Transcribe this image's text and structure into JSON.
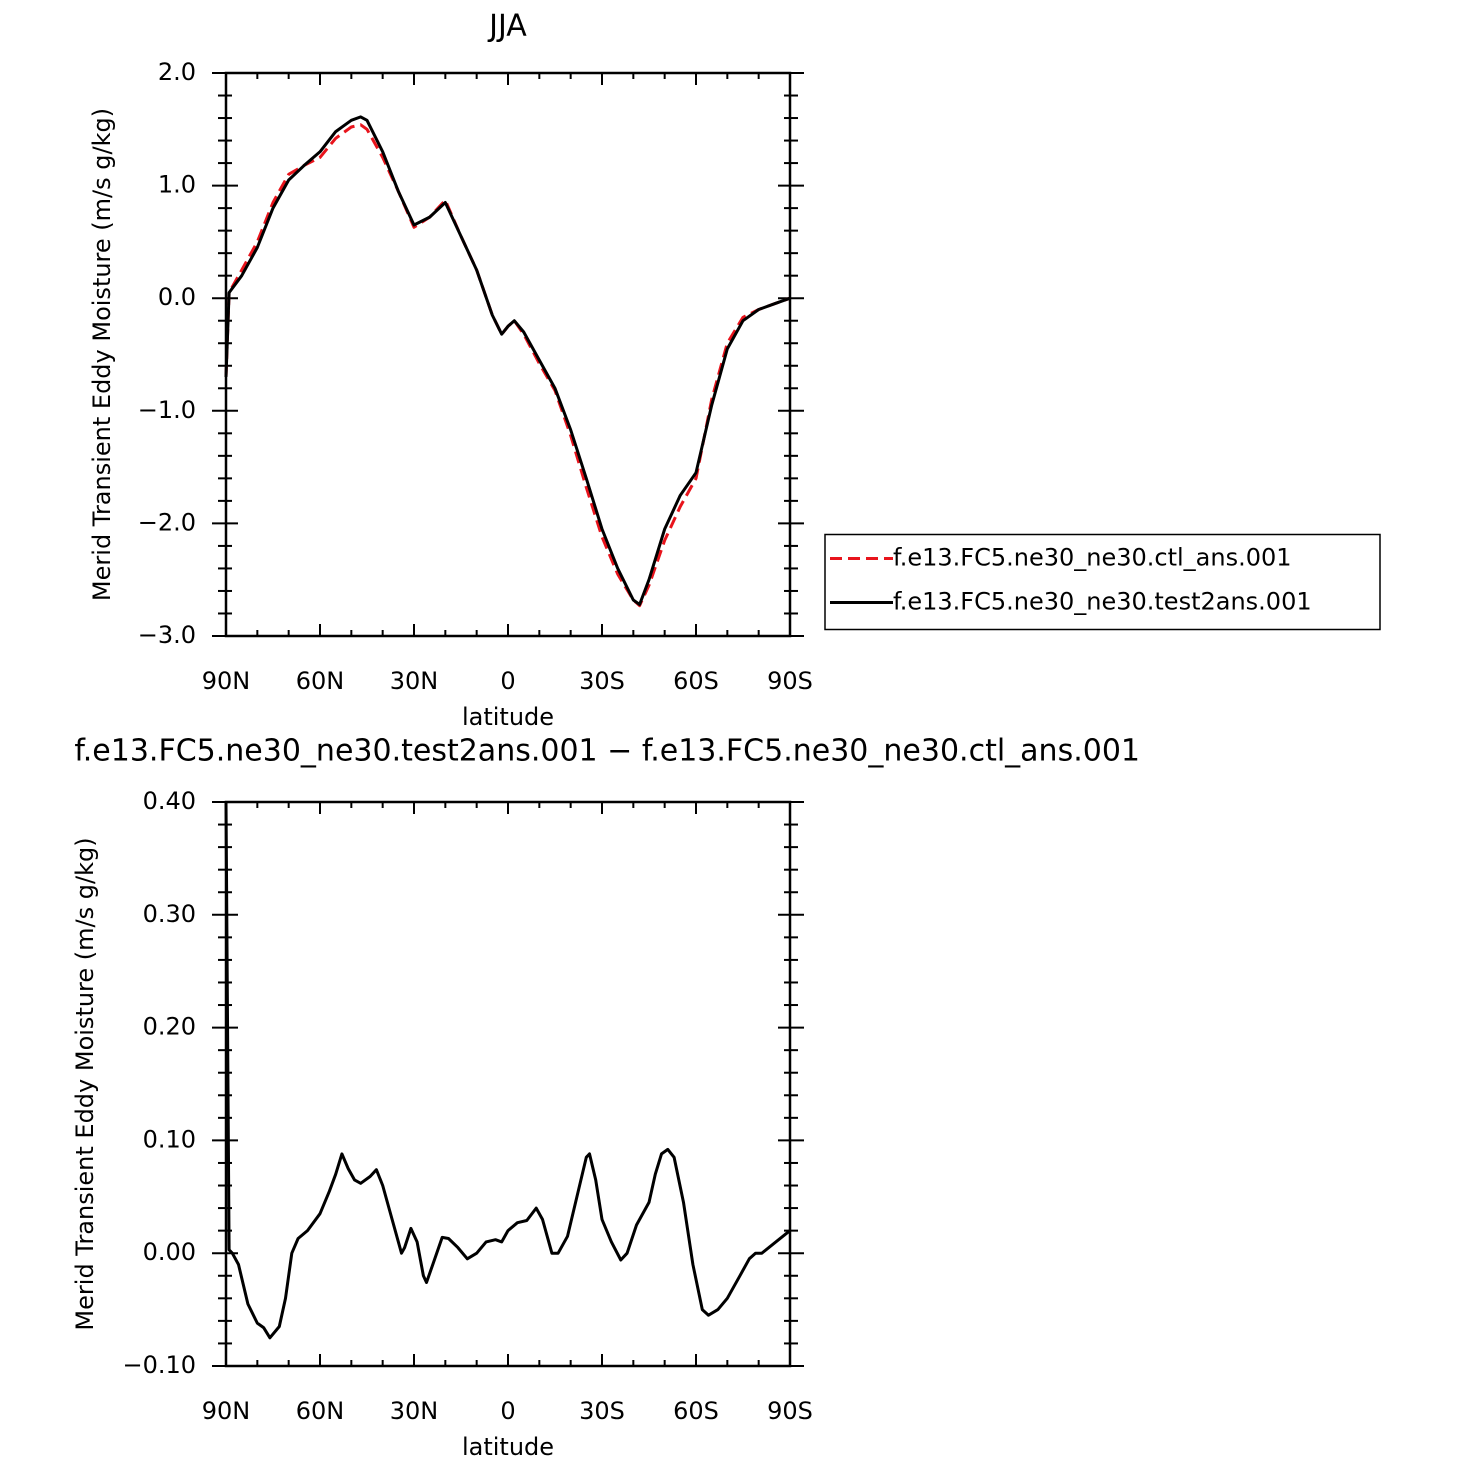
{
  "chart_data": [
    {
      "type": "line",
      "title": "JJA",
      "xlabel": "latitude",
      "ylabel": "Merid Transient Eddy Moisture (m/s g/kg)",
      "x": [
        90,
        89,
        85,
        80,
        75,
        70,
        65,
        60,
        55,
        50,
        47,
        45,
        40,
        35,
        30,
        25,
        20,
        15,
        10,
        5,
        2,
        0,
        -2,
        -5,
        -10,
        -15,
        -20,
        -25,
        -30,
        -35,
        -40,
        -42,
        -45,
        -50,
        -55,
        -60,
        -65,
        -70,
        -75,
        -80,
        -85,
        -90
      ],
      "series": [
        {
          "name": "f.e13.FC5.ne30_ne30.ctl_ans.001",
          "color": "#e8141c",
          "dash": true,
          "values": [
            -0.7,
            0.05,
            0.25,
            0.5,
            0.85,
            1.1,
            1.18,
            1.25,
            1.42,
            1.52,
            1.54,
            1.5,
            1.25,
            0.95,
            0.63,
            0.72,
            0.87,
            0.55,
            0.25,
            -0.15,
            -0.32,
            -0.25,
            -0.2,
            -0.32,
            -0.58,
            -0.82,
            -1.22,
            -1.68,
            -2.12,
            -2.45,
            -2.68,
            -2.73,
            -2.55,
            -2.15,
            -1.85,
            -1.6,
            -0.9,
            -0.4,
            -0.17,
            -0.1,
            -0.05,
            0
          ]
        },
        {
          "name": "f.e13.FC5.ne30_ne30.test2ans.001",
          "color": "#000000",
          "dash": false,
          "values": [
            -0.7,
            0.05,
            0.2,
            0.45,
            0.8,
            1.05,
            1.18,
            1.3,
            1.48,
            1.58,
            1.61,
            1.58,
            1.3,
            0.95,
            0.65,
            0.72,
            0.85,
            0.55,
            0.25,
            -0.15,
            -0.32,
            -0.25,
            -0.2,
            -0.3,
            -0.55,
            -0.8,
            -1.17,
            -1.6,
            -2.05,
            -2.4,
            -2.68,
            -2.72,
            -2.5,
            -2.05,
            -1.75,
            -1.55,
            -0.95,
            -0.45,
            -0.2,
            -0.1,
            -0.05,
            0
          ]
        }
      ],
      "xlim": [
        90,
        -90
      ],
      "xticks": [
        {
          "value": 90,
          "label": "90N"
        },
        {
          "value": 60,
          "label": "60N"
        },
        {
          "value": 30,
          "label": "30N"
        },
        0,
        {
          "value": -30,
          "label": "30S"
        },
        {
          "value": -60,
          "label": "60S"
        },
        {
          "value": -90,
          "label": "90S"
        }
      ],
      "ylim": [
        -3,
        2
      ],
      "yticks": [
        {
          "value": 2,
          "label": "2.0"
        },
        {
          "value": 1,
          "label": "1.0"
        },
        {
          "value": 0,
          "label": "0.0"
        },
        {
          "value": -1,
          "label": "−1.0"
        },
        {
          "value": -2,
          "label": "−2.0"
        },
        {
          "value": -3,
          "label": "−3.0"
        }
      ],
      "legend": "right"
    },
    {
      "type": "line",
      "title": "f.e13.FC5.ne30_ne30.test2ans.001 − f.e13.FC5.ne30_ne30.ctl_ans.001",
      "xlabel": "latitude",
      "ylabel": "Merid Transient Eddy Moisture (m/s g/kg)",
      "x": [
        90,
        89,
        88,
        86,
        83,
        80,
        78,
        76,
        73,
        71,
        69,
        67,
        64,
        60,
        57,
        55,
        53,
        51,
        49,
        47,
        44,
        42,
        40,
        37,
        34,
        33,
        31,
        29,
        27,
        26,
        24,
        21,
        19,
        16,
        13,
        10,
        7,
        4,
        2,
        0,
        -3,
        -6,
        -9,
        -11,
        -14,
        -16,
        -19,
        -22,
        -25,
        -26,
        -28,
        -30,
        -33,
        -36,
        -38,
        -41,
        -45,
        -47,
        -49,
        -51,
        -53,
        -56,
        -59,
        -62,
        -64,
        -67,
        -70,
        -74,
        -77,
        -79,
        -81,
        -90
      ],
      "series": [
        {
          "color": "#000000",
          "dash": false,
          "values": [
            0.4,
            0.003,
            0,
            -0.01,
            -0.045,
            -0.062,
            -0.066,
            -0.075,
            -0.065,
            -0.04,
            0,
            0.013,
            0.02,
            0.035,
            0.055,
            0.07,
            0.088,
            0.075,
            0.065,
            0.062,
            0.068,
            0.074,
            0.06,
            0.03,
            0,
            0.005,
            0.022,
            0.01,
            -0.02,
            -0.026,
            -0.01,
            0.014,
            0.013,
            0.005,
            -0.005,
            0,
            0.01,
            0.012,
            0.01,
            0.02,
            0.027,
            0.029,
            0.04,
            0.03,
            0,
            0,
            0.015,
            0.05,
            0.085,
            0.088,
            0.065,
            0.03,
            0.01,
            -0.006,
            0,
            0.025,
            0.045,
            0.07,
            0.088,
            0.092,
            0.085,
            0.045,
            -0.01,
            -0.05,
            -0.055,
            -0.05,
            -0.04,
            -0.02,
            -0.005,
            0,
            0,
            0.02
          ]
        }
      ],
      "xlim": [
        90,
        -90
      ],
      "xticks": [
        {
          "value": 90,
          "label": "90N"
        },
        {
          "value": 60,
          "label": "60N"
        },
        {
          "value": 30,
          "label": "30N"
        },
        0,
        {
          "value": -30,
          "label": "30S"
        },
        {
          "value": -60,
          "label": "60S"
        },
        {
          "value": -90,
          "label": "90S"
        }
      ],
      "ylim": [
        -0.1,
        0.4
      ],
      "yticks": [
        {
          "value": 0.4,
          "label": "0.40"
        },
        {
          "value": 0.3,
          "label": "0.30"
        },
        {
          "value": 0.2,
          "label": "0.20"
        },
        {
          "value": 0.1,
          "label": "0.10"
        },
        {
          "value": 0,
          "label": "0.00"
        },
        {
          "value": -0.1,
          "label": "−0.10"
        }
      ]
    }
  ]
}
